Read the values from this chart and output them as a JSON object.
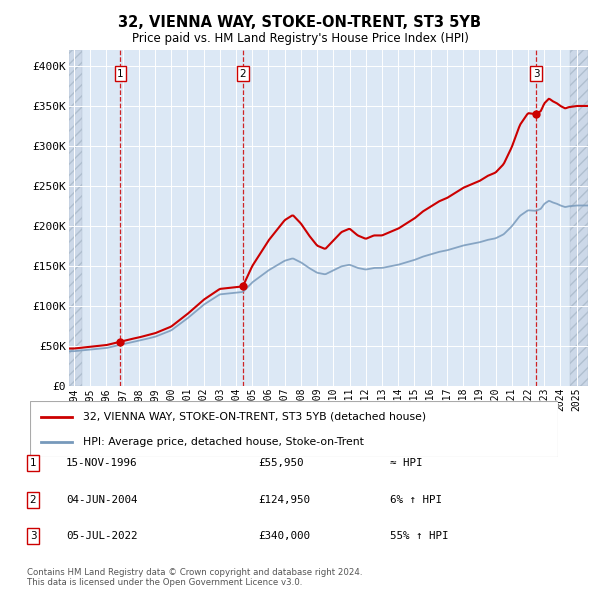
{
  "title": "32, VIENNA WAY, STOKE-ON-TRENT, ST3 5YB",
  "subtitle": "Price paid vs. HM Land Registry's House Price Index (HPI)",
  "sale_years_num": [
    1996.875,
    2004.417,
    2022.5
  ],
  "sale_prices": [
    55950,
    124950,
    340000
  ],
  "sale_labels": [
    "1",
    "2",
    "3"
  ],
  "hpi_anchors": [
    [
      1994.0,
      44000
    ],
    [
      1995.0,
      46000
    ],
    [
      1996.0,
      48000
    ],
    [
      1996.875,
      52000
    ],
    [
      1997.5,
      55000
    ],
    [
      1998.0,
      57000
    ],
    [
      1999.0,
      62000
    ],
    [
      2000.0,
      70000
    ],
    [
      2001.0,
      85000
    ],
    [
      2002.0,
      102000
    ],
    [
      2003.0,
      115000
    ],
    [
      2004.417,
      118000
    ],
    [
      2005.0,
      130000
    ],
    [
      2006.0,
      145000
    ],
    [
      2007.0,
      157000
    ],
    [
      2007.5,
      160000
    ],
    [
      2008.0,
      155000
    ],
    [
      2008.5,
      148000
    ],
    [
      2009.0,
      142000
    ],
    [
      2009.5,
      140000
    ],
    [
      2010.0,
      145000
    ],
    [
      2010.5,
      150000
    ],
    [
      2011.0,
      152000
    ],
    [
      2011.5,
      148000
    ],
    [
      2012.0,
      146000
    ],
    [
      2012.5,
      148000
    ],
    [
      2013.0,
      148000
    ],
    [
      2013.5,
      150000
    ],
    [
      2014.0,
      152000
    ],
    [
      2014.5,
      155000
    ],
    [
      2015.0,
      158000
    ],
    [
      2015.5,
      162000
    ],
    [
      2016.0,
      165000
    ],
    [
      2016.5,
      168000
    ],
    [
      2017.0,
      170000
    ],
    [
      2017.5,
      173000
    ],
    [
      2018.0,
      176000
    ],
    [
      2018.5,
      178000
    ],
    [
      2019.0,
      180000
    ],
    [
      2019.5,
      183000
    ],
    [
      2020.0,
      185000
    ],
    [
      2020.5,
      190000
    ],
    [
      2021.0,
      200000
    ],
    [
      2021.5,
      213000
    ],
    [
      2022.0,
      220000
    ],
    [
      2022.5,
      219355
    ],
    [
      2022.8,
      222000
    ],
    [
      2023.0,
      228000
    ],
    [
      2023.3,
      232000
    ],
    [
      2023.5,
      230000
    ],
    [
      2023.8,
      228000
    ],
    [
      2024.0,
      226000
    ],
    [
      2024.3,
      224000
    ],
    [
      2024.5,
      225000
    ],
    [
      2025.0,
      226000
    ]
  ],
  "hpi_line_color": "#7799bb",
  "sale_line_color": "#cc0000",
  "sale_dot_color": "#cc0000",
  "vline_color": "#cc0000",
  "bg_main": "#dce8f5",
  "bg_hatch": "#ccd8e8",
  "ylim": [
    0,
    420000
  ],
  "yticks": [
    0,
    50000,
    100000,
    150000,
    200000,
    250000,
    300000,
    350000,
    400000
  ],
  "ytick_labels": [
    "£0",
    "£50K",
    "£100K",
    "£150K",
    "£200K",
    "£250K",
    "£300K",
    "£350K",
    "£400K"
  ],
  "xmin": 1993.7,
  "xmax": 2025.7,
  "hatch_left_end": 1994.5,
  "hatch_right_start": 2024.58,
  "footer": "Contains HM Land Registry data © Crown copyright and database right 2024.\nThis data is licensed under the Open Government Licence v3.0.",
  "legend_entries": [
    "32, VIENNA WAY, STOKE-ON-TRENT, ST3 5YB (detached house)",
    "HPI: Average price, detached house, Stoke-on-Trent"
  ],
  "table_rows": [
    [
      "1",
      "15-NOV-1996",
      "£55,950",
      "≈ HPI"
    ],
    [
      "2",
      "04-JUN-2004",
      "£124,950",
      "6% ↑ HPI"
    ],
    [
      "3",
      "05-JUL-2022",
      "£340,000",
      "55% ↑ HPI"
    ]
  ]
}
